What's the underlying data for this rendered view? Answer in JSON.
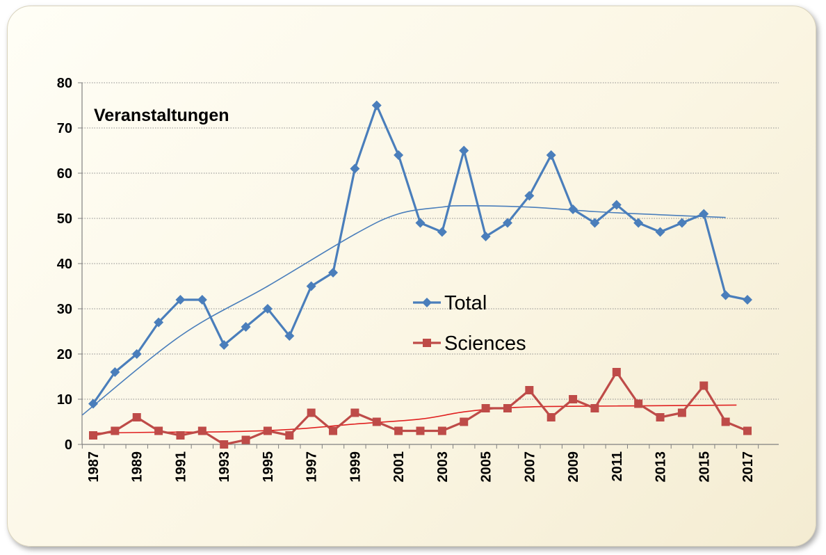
{
  "chart_data": {
    "type": "line",
    "title": "Veranstaltungen",
    "x": [
      1987,
      1988,
      1989,
      1990,
      1991,
      1992,
      1993,
      1994,
      1995,
      1996,
      1997,
      1998,
      1999,
      2000,
      2001,
      2002,
      2003,
      2004,
      2005,
      2006,
      2007,
      2008,
      2009,
      2010,
      2011,
      2012,
      2013,
      2014,
      2015,
      2016,
      2017
    ],
    "x_tick_labels": [
      "1987",
      "1989",
      "1991",
      "1993",
      "1995",
      "1997",
      "1999",
      "2001",
      "2003",
      "2005",
      "2007",
      "2009",
      "2011",
      "2013",
      "2015",
      "2017"
    ],
    "ylim": [
      0,
      80
    ],
    "y_tick_labels": [
      "0",
      "10",
      "20",
      "30",
      "40",
      "50",
      "60",
      "70",
      "80"
    ],
    "grid": true,
    "legend_position": "center-right",
    "series": [
      {
        "name": "Total",
        "color": "#4a7ebb",
        "marker": "diamond",
        "values": [
          9,
          16,
          20,
          27,
          32,
          32,
          22,
          26,
          30,
          24,
          35,
          38,
          61,
          75,
          64,
          49,
          47,
          65,
          46,
          49,
          55,
          64,
          52,
          49,
          53,
          49,
          47,
          49,
          51,
          33,
          32
        ],
        "trendline": {
          "x": [
            1986.5,
            1991,
            1995,
            1999,
            2001,
            2003,
            2004,
            2007,
            2010,
            2013,
            2016
          ],
          "y": [
            6.5,
            24,
            35,
            46.5,
            51,
            52.5,
            52.8,
            52.5,
            51.5,
            50.8,
            50.2
          ]
        }
      },
      {
        "name": "Sciences",
        "color": "#be4b48",
        "marker": "square",
        "values": [
          2,
          3,
          6,
          3,
          2,
          3,
          0,
          1,
          3,
          2,
          7,
          3,
          7,
          5,
          3,
          3,
          3,
          5,
          8,
          8,
          12,
          6,
          10,
          8,
          16,
          9,
          6,
          7,
          13,
          5,
          3
        ],
        "trendline": {
          "x": [
            1987,
            1990,
            1993,
            1996,
            1999,
            2002,
            2004,
            2006,
            2008,
            2011,
            2014,
            2016.5
          ],
          "y": [
            2.5,
            2.7,
            2.8,
            3.3,
            4.5,
            5.6,
            7.2,
            8.1,
            8.4,
            8.5,
            8.6,
            8.7
          ]
        }
      }
    ]
  }
}
